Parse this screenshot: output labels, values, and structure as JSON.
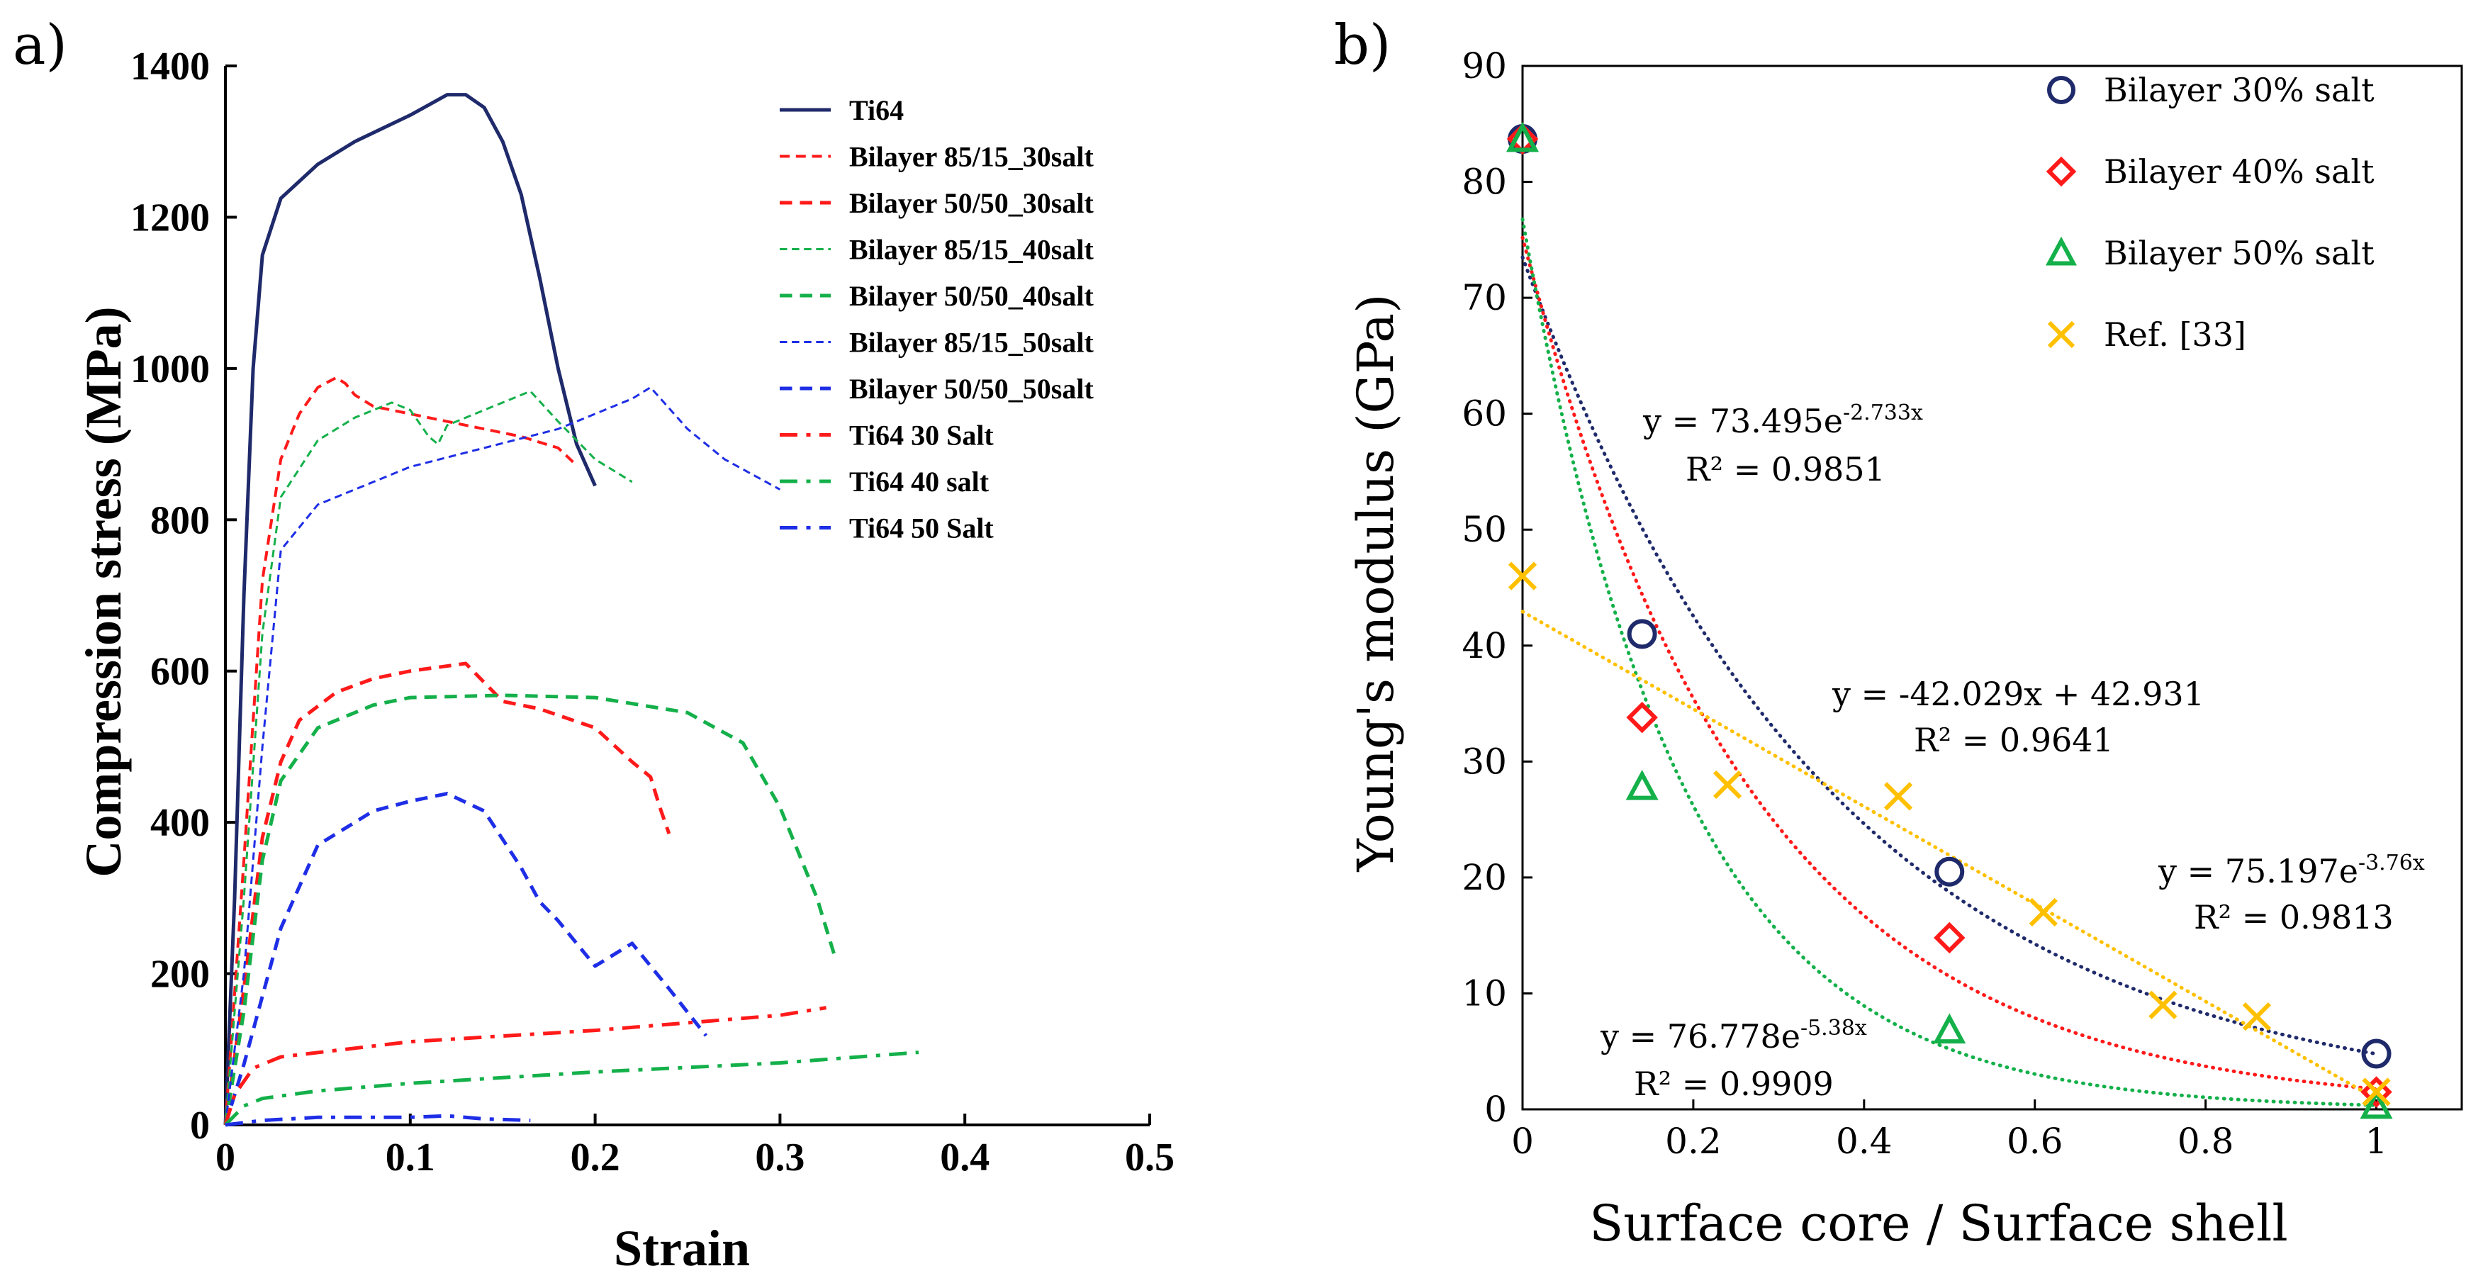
{
  "colors": {
    "navy": "#1f2a6b",
    "red": "#ff1a1a",
    "green": "#14b04a",
    "blue": "#1e2ee6",
    "yellow": "#ffc000",
    "axis": "#000000"
  },
  "chart_data": [
    {
      "type": "line",
      "panel_label": "a)",
      "title": "",
      "xlabel": "Strain",
      "ylabel": "Compression stress (MPa)",
      "xlim": [
        0,
        0.5
      ],
      "ylim": [
        0,
        1400
      ],
      "xticks": [
        0,
        0.1,
        0.2,
        0.3,
        0.4,
        0.5
      ],
      "xtick_labels": [
        "0",
        "0.1",
        "0.2",
        "0.3",
        "0.4",
        "0.5"
      ],
      "yticks": [
        0,
        200,
        400,
        600,
        800,
        1000,
        1200,
        1400
      ],
      "ytick_labels": [
        "0",
        "200",
        "400",
        "600",
        "800",
        "1000",
        "1200",
        "1400"
      ],
      "grid": false,
      "legend_position": "top-right",
      "series": [
        {
          "name": "Ti64",
          "color": "navy",
          "style": "solid",
          "width": 5,
          "points": [
            [
              0,
              0
            ],
            [
              0.005,
              300
            ],
            [
              0.01,
              700
            ],
            [
              0.015,
              1000
            ],
            [
              0.02,
              1150
            ],
            [
              0.03,
              1225
            ],
            [
              0.05,
              1270
            ],
            [
              0.07,
              1300
            ],
            [
              0.1,
              1335
            ],
            [
              0.12,
              1362
            ],
            [
              0.13,
              1362
            ],
            [
              0.14,
              1345
            ],
            [
              0.15,
              1300
            ],
            [
              0.16,
              1230
            ],
            [
              0.17,
              1120
            ],
            [
              0.18,
              1000
            ],
            [
              0.19,
              900
            ],
            [
              0.2,
              845
            ]
          ]
        },
        {
          "name": "Bilayer 85/15_30salt",
          "color": "red",
          "style": "dash",
          "width": 4,
          "points": [
            [
              0,
              0
            ],
            [
              0.01,
              350
            ],
            [
              0.02,
              720
            ],
            [
              0.03,
              880
            ],
            [
              0.04,
              940
            ],
            [
              0.05,
              975
            ],
            [
              0.06,
              988
            ],
            [
              0.065,
              980
            ],
            [
              0.07,
              965
            ],
            [
              0.08,
              950
            ],
            [
              0.1,
              940
            ],
            [
              0.12,
              930
            ],
            [
              0.14,
              920
            ],
            [
              0.16,
              910
            ],
            [
              0.18,
              895
            ],
            [
              0.19,
              872
            ]
          ]
        },
        {
          "name": "Bilayer 50/50_30salt",
          "color": "red",
          "style": "dash",
          "width": 5,
          "points": [
            [
              0,
              0
            ],
            [
              0.01,
              180
            ],
            [
              0.02,
              380
            ],
            [
              0.03,
              480
            ],
            [
              0.04,
              535
            ],
            [
              0.06,
              572
            ],
            [
              0.08,
              590
            ],
            [
              0.1,
              600
            ],
            [
              0.13,
              610
            ],
            [
              0.14,
              585
            ],
            [
              0.15,
              560
            ],
            [
              0.17,
              550
            ],
            [
              0.2,
              525
            ],
            [
              0.22,
              480
            ],
            [
              0.23,
              460
            ],
            [
              0.235,
              420
            ],
            [
              0.24,
              385
            ]
          ]
        },
        {
          "name": "Bilayer 85/15_40salt",
          "color": "green",
          "style": "dash",
          "width": 3,
          "points": [
            [
              0,
              0
            ],
            [
              0.01,
              300
            ],
            [
              0.02,
              650
            ],
            [
              0.03,
              830
            ],
            [
              0.05,
              905
            ],
            [
              0.07,
              935
            ],
            [
              0.09,
              955
            ],
            [
              0.1,
              945
            ],
            [
              0.11,
              910
            ],
            [
              0.115,
              900
            ],
            [
              0.12,
              925
            ],
            [
              0.14,
              945
            ],
            [
              0.165,
              970
            ],
            [
              0.18,
              930
            ],
            [
              0.2,
              880
            ],
            [
              0.22,
              850
            ]
          ]
        },
        {
          "name": "Bilayer 50/50_40salt",
          "color": "green",
          "style": "dash",
          "width": 5,
          "points": [
            [
              0,
              0
            ],
            [
              0.01,
              150
            ],
            [
              0.02,
              350
            ],
            [
              0.03,
              455
            ],
            [
              0.05,
              525
            ],
            [
              0.08,
              555
            ],
            [
              0.1,
              565
            ],
            [
              0.15,
              568
            ],
            [
              0.2,
              565
            ],
            [
              0.25,
              545
            ],
            [
              0.28,
              505
            ],
            [
              0.3,
              420
            ],
            [
              0.32,
              300
            ],
            [
              0.33,
              220
            ]
          ]
        },
        {
          "name": "Bilayer 85/15_50salt",
          "color": "blue",
          "style": "dash",
          "width": 3,
          "points": [
            [
              0,
              0
            ],
            [
              0.01,
              200
            ],
            [
              0.02,
              500
            ],
            [
              0.03,
              760
            ],
            [
              0.05,
              820
            ],
            [
              0.08,
              850
            ],
            [
              0.1,
              870
            ],
            [
              0.14,
              895
            ],
            [
              0.18,
              920
            ],
            [
              0.22,
              960
            ],
            [
              0.23,
              975
            ],
            [
              0.25,
              920
            ],
            [
              0.27,
              880
            ],
            [
              0.3,
              840
            ]
          ]
        },
        {
          "name": "Bilayer 50/50_50salt",
          "color": "blue",
          "style": "dash",
          "width": 5,
          "points": [
            [
              0,
              0
            ],
            [
              0.01,
              80
            ],
            [
              0.03,
              260
            ],
            [
              0.05,
              370
            ],
            [
              0.08,
              415
            ],
            [
              0.1,
              428
            ],
            [
              0.12,
              438
            ],
            [
              0.14,
              415
            ],
            [
              0.16,
              340
            ],
            [
              0.17,
              295
            ],
            [
              0.18,
              270
            ],
            [
              0.2,
              210
            ],
            [
              0.22,
              240
            ],
            [
              0.24,
              180
            ],
            [
              0.26,
              118
            ]
          ]
        },
        {
          "name": "Ti64 30 Salt",
          "color": "red",
          "style": "dashdot",
          "width": 5,
          "points": [
            [
              0,
              0
            ],
            [
              0.005,
              40
            ],
            [
              0.015,
              75
            ],
            [
              0.03,
              90
            ],
            [
              0.1,
              110
            ],
            [
              0.2,
              125
            ],
            [
              0.3,
              145
            ],
            [
              0.325,
              155
            ]
          ]
        },
        {
          "name": "Ti64 40 salt",
          "color": "green",
          "style": "dashdot",
          "width": 5,
          "points": [
            [
              0,
              0
            ],
            [
              0.01,
              25
            ],
            [
              0.02,
              35
            ],
            [
              0.05,
              45
            ],
            [
              0.1,
              55
            ],
            [
              0.2,
              70
            ],
            [
              0.3,
              82
            ],
            [
              0.375,
              96
            ]
          ]
        },
        {
          "name": "Ti64 50 Salt",
          "color": "blue",
          "style": "dashdot",
          "width": 5,
          "points": [
            [
              0,
              0
            ],
            [
              0.02,
              6
            ],
            [
              0.05,
              10
            ],
            [
              0.1,
              10
            ],
            [
              0.12,
              12
            ],
            [
              0.14,
              8
            ],
            [
              0.165,
              6
            ]
          ]
        }
      ]
    },
    {
      "type": "scatter",
      "panel_label": "b)",
      "title": "",
      "xlabel": "Surface core / Surface shell",
      "ylabel": "Young's modulus (GPa)",
      "xlim": [
        0,
        1.1
      ],
      "ylim": [
        0,
        90
      ],
      "xticks": [
        0,
        0.2,
        0.4,
        0.6,
        0.8,
        1
      ],
      "xtick_labels": [
        "0",
        "0.2",
        "0.4",
        "0.6",
        "0.8",
        "1"
      ],
      "yticks": [
        0,
        10,
        20,
        30,
        40,
        50,
        60,
        70,
        80,
        90
      ],
      "ytick_labels": [
        "0",
        "10",
        "20",
        "30",
        "40",
        "50",
        "60",
        "70",
        "80",
        "90"
      ],
      "grid": false,
      "legend_position": "top-right",
      "series": [
        {
          "name": "Bilayer 30% salt",
          "color": "navy",
          "marker": "circle",
          "x": [
            0,
            0.14,
            0.5,
            1
          ],
          "y": [
            83.7,
            41,
            20.5,
            4.8
          ],
          "fit": {
            "kind": "exp",
            "a": 73.495,
            "b": -2.733,
            "equation": "y = 73.495e",
            "exponent": "-2.733x",
            "r2": "R² = 0.9851"
          }
        },
        {
          "name": "Bilayer 40% salt",
          "color": "red",
          "marker": "diamond",
          "x": [
            0,
            0.14,
            0.5,
            1
          ],
          "y": [
            83.7,
            33.8,
            14.8,
            1.5
          ],
          "fit": {
            "kind": "exp",
            "a": 75.197,
            "b": -3.76,
            "equation": "y = 75.197e",
            "exponent": "-3.76x",
            "r2": "R² = 0.9813"
          }
        },
        {
          "name": "Bilayer 50% salt",
          "color": "green",
          "marker": "triangle",
          "x": [
            0,
            0.14,
            0.5,
            1
          ],
          "y": [
            83.7,
            27.8,
            6.8,
            0.3
          ],
          "fit": {
            "kind": "exp",
            "a": 76.778,
            "b": -5.38,
            "equation": "y = 76.778e",
            "exponent": "-5.38x",
            "r2": "R² = 0.9909"
          }
        },
        {
          "name": "Ref. [33]",
          "color": "yellow",
          "marker": "x",
          "x": [
            0,
            0.24,
            0.44,
            0.61,
            0.75,
            0.86,
            1
          ],
          "y": [
            46,
            28,
            27,
            17,
            9,
            8,
            1.5
          ],
          "fit": {
            "kind": "linear",
            "m": -42.029,
            "c": 42.931,
            "equation": "y = -42.029x + 42.931",
            "exponent": "",
            "r2": "R² = 0.9641"
          }
        }
      ]
    }
  ]
}
